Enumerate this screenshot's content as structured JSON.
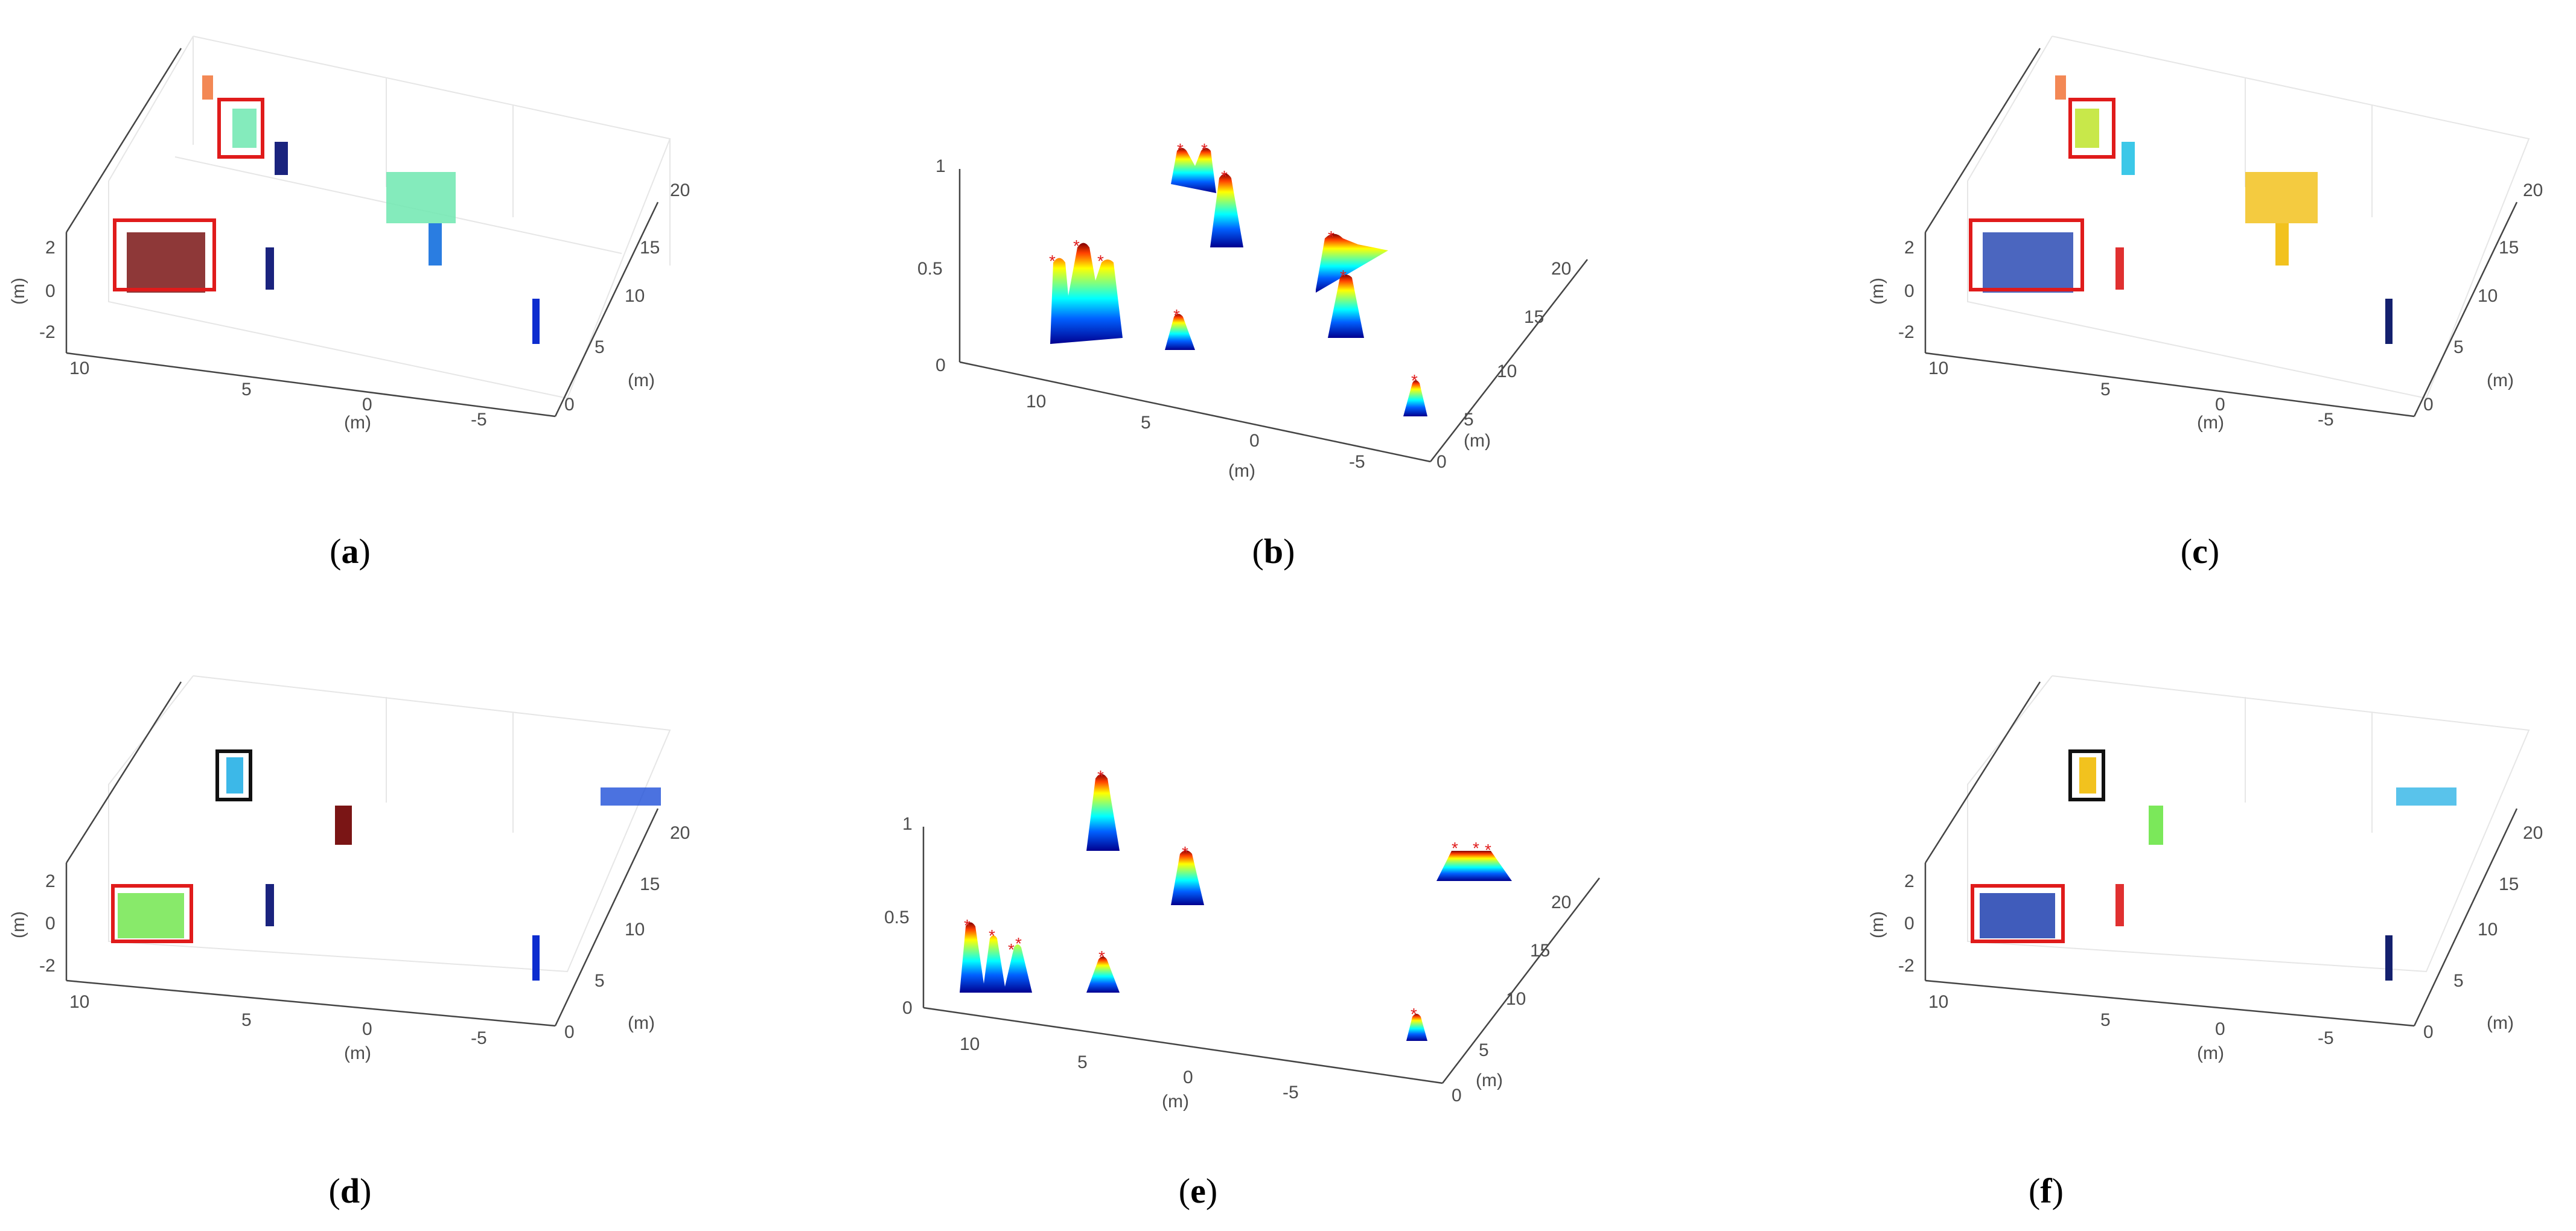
{
  "panels": [
    {
      "id": "a",
      "label": "a",
      "kind": "cloud",
      "xticks": [
        "10",
        "5",
        "0",
        "-5"
      ],
      "yticks": [
        "0",
        "5",
        "10",
        "15",
        "20"
      ],
      "zticks": [
        "2",
        "0",
        "-2"
      ],
      "unit": "(m)",
      "boxes": [
        {
          "color": "#e01b1b"
        },
        {
          "color": "#e01b1b"
        }
      ]
    },
    {
      "id": "b",
      "label": "b",
      "kind": "density",
      "xticks": [
        "10",
        "5",
        "0",
        "-5"
      ],
      "yticks": [
        "0",
        "5",
        "10",
        "15",
        "20"
      ],
      "zticks": [
        "1",
        "0.5",
        "0"
      ],
      "unit": "(m)"
    },
    {
      "id": "c",
      "label": "c",
      "kind": "cloud",
      "xticks": [
        "10",
        "5",
        "0",
        "-5"
      ],
      "yticks": [
        "0",
        "5",
        "10",
        "15",
        "20"
      ],
      "zticks": [
        "2",
        "0",
        "-2"
      ],
      "unit": "(m)",
      "boxes": [
        {
          "color": "#e01b1b"
        },
        {
          "color": "#e01b1b"
        }
      ]
    },
    {
      "id": "d",
      "label": "d",
      "kind": "cloud",
      "xticks": [
        "10",
        "5",
        "0",
        "-5"
      ],
      "yticks": [
        "0",
        "5",
        "10",
        "15",
        "20"
      ],
      "zticks": [
        "2",
        "0",
        "-2"
      ],
      "unit": "(m)",
      "boxes": [
        {
          "color": "#111111"
        },
        {
          "color": "#e01b1b"
        }
      ]
    },
    {
      "id": "e",
      "label": "e",
      "kind": "density",
      "xticks": [
        "10",
        "5",
        "0",
        "-5"
      ],
      "yticks": [
        "0",
        "5",
        "10",
        "15",
        "20"
      ],
      "zticks": [
        "1",
        "0.5",
        "0"
      ],
      "unit": "(m)"
    },
    {
      "id": "f",
      "label": "f",
      "kind": "cloud",
      "xticks": [
        "10",
        "5",
        "0",
        "-5"
      ],
      "yticks": [
        "0",
        "5",
        "10",
        "15",
        "20"
      ],
      "zticks": [
        "2",
        "0",
        "-2"
      ],
      "unit": "(m)",
      "boxes": [
        {
          "color": "#111111"
        },
        {
          "color": "#e01b1b"
        }
      ]
    }
  ]
}
